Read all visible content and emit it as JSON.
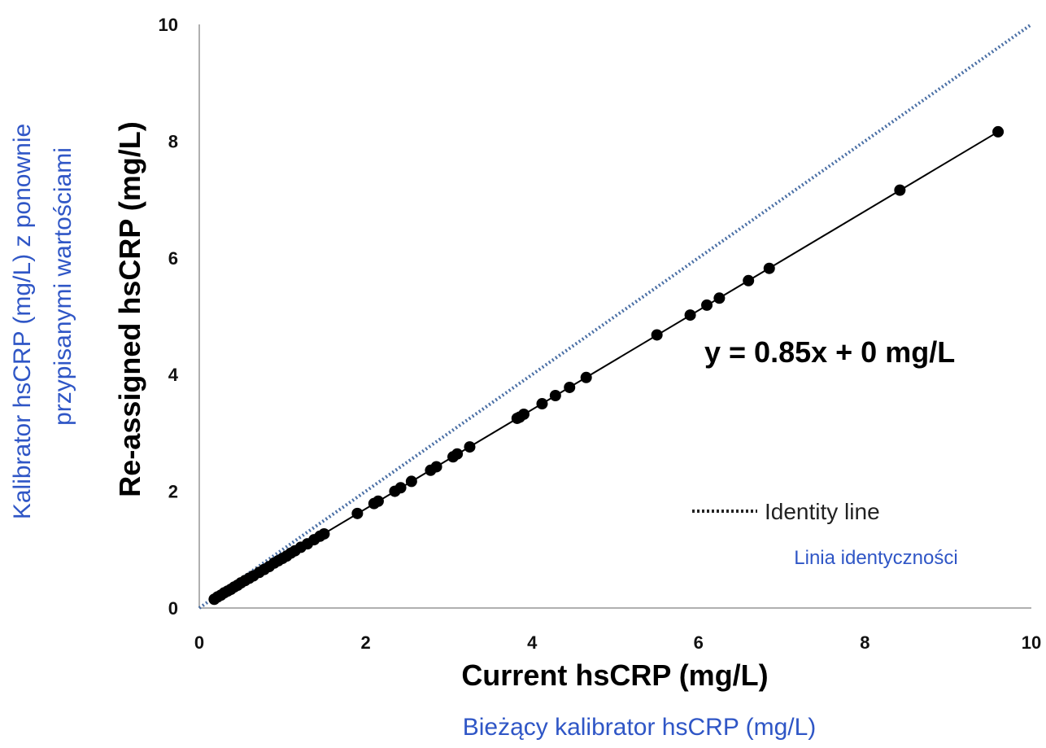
{
  "chart_data": {
    "type": "scatter",
    "title": "",
    "xlabel": "Current hsCRP (mg/L)",
    "xlabel_translation": "Bieżący kalibrator hsCRP (mg/L)",
    "ylabel": "Re-assigned hsCRP (mg/L)",
    "ylabel_translation_line1": "Kalibrator hsCRP (mg/L) z ponownie",
    "ylabel_translation_line2": "przypisanymi wartościami",
    "xlim": [
      0,
      10
    ],
    "ylim": [
      0,
      10
    ],
    "xticks": [
      "0",
      "2",
      "4",
      "6",
      "8",
      "10"
    ],
    "yticks": [
      "0",
      "2",
      "4",
      "6",
      "8",
      "10"
    ],
    "grid": false,
    "legend_position": "bottom-right",
    "equation": "y = 0.85x + 0 mg/L",
    "regression": {
      "slope": 0.85,
      "intercept": 0
    },
    "identity_line": {
      "label": "Identity line",
      "translation": "Linia identyczności",
      "color": "#4a6fa5",
      "style": "dotted"
    },
    "point_color": "#000000",
    "points": [
      [
        0.18,
        0.15
      ],
      [
        0.22,
        0.19
      ],
      [
        0.26,
        0.22
      ],
      [
        0.3,
        0.26
      ],
      [
        0.34,
        0.29
      ],
      [
        0.38,
        0.32
      ],
      [
        0.42,
        0.36
      ],
      [
        0.46,
        0.39
      ],
      [
        0.5,
        0.43
      ],
      [
        0.55,
        0.47
      ],
      [
        0.6,
        0.51
      ],
      [
        0.65,
        0.55
      ],
      [
        0.72,
        0.61
      ],
      [
        0.78,
        0.66
      ],
      [
        0.84,
        0.71
      ],
      [
        0.9,
        0.77
      ],
      [
        0.95,
        0.81
      ],
      [
        1.0,
        0.85
      ],
      [
        1.05,
        0.89
      ],
      [
        1.1,
        0.94
      ],
      [
        1.15,
        0.98
      ],
      [
        1.22,
        1.04
      ],
      [
        1.3,
        1.1
      ],
      [
        1.38,
        1.17
      ],
      [
        1.45,
        1.23
      ],
      [
        1.5,
        1.27
      ],
      [
        1.9,
        1.62
      ],
      [
        2.1,
        1.79
      ],
      [
        2.15,
        1.83
      ],
      [
        2.35,
        2.0
      ],
      [
        2.42,
        2.06
      ],
      [
        2.55,
        2.17
      ],
      [
        2.78,
        2.36
      ],
      [
        2.85,
        2.42
      ],
      [
        3.05,
        2.59
      ],
      [
        3.1,
        2.64
      ],
      [
        3.25,
        2.76
      ],
      [
        3.82,
        3.25
      ],
      [
        3.85,
        3.27
      ],
      [
        3.9,
        3.32
      ],
      [
        4.12,
        3.5
      ],
      [
        4.28,
        3.64
      ],
      [
        4.45,
        3.78
      ],
      [
        4.65,
        3.95
      ],
      [
        5.5,
        4.68
      ],
      [
        5.9,
        5.02
      ],
      [
        6.1,
        5.19
      ],
      [
        6.25,
        5.31
      ],
      [
        6.6,
        5.61
      ],
      [
        6.85,
        5.82
      ],
      [
        8.42,
        7.16
      ],
      [
        9.6,
        8.16
      ]
    ]
  }
}
